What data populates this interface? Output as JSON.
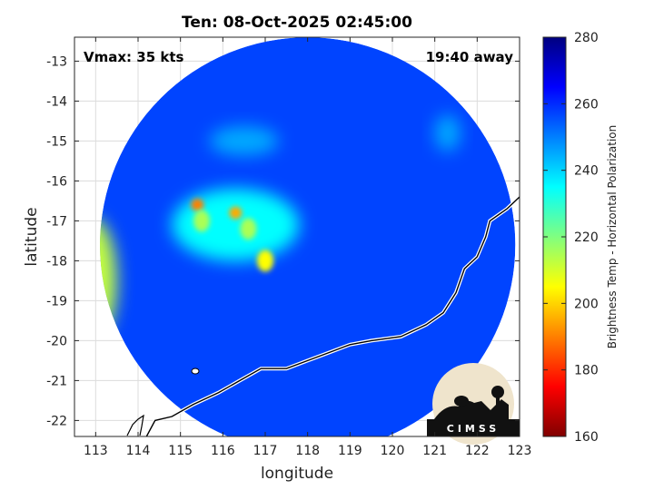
{
  "title": "Ten: 08-Oct-2025 02:45:00",
  "annotations": {
    "vmax": "Vmax: 35 kts",
    "away": "19:40 away"
  },
  "logo": {
    "text": "CIMSS"
  },
  "colors": {
    "accent_dark_blue": "#0a1a7a",
    "coastline": "#000000",
    "background": "#ffffff"
  },
  "chart_data": {
    "type": "heatmap",
    "title": "Ten: 08-Oct-2025 02:45:00",
    "xlabel": "longitude",
    "ylabel": "latitude",
    "xlim": [
      112.5,
      123
    ],
    "ylim": [
      -22.4,
      -12.4
    ],
    "x_ticks": [
      "113",
      "114",
      "115",
      "116",
      "117",
      "118",
      "119",
      "120",
      "121",
      "122",
      "123"
    ],
    "y_ticks": [
      "-13",
      "-14",
      "-15",
      "-16",
      "-17",
      "-18",
      "-19",
      "-20",
      "-21",
      "-22"
    ],
    "grid": true,
    "colorbar": {
      "label": "Brightness Temp - Horizontal Polarization",
      "range": [
        160,
        280
      ],
      "ticks": [
        "280",
        "260",
        "240",
        "220",
        "200",
        "180",
        "160"
      ]
    },
    "swath": {
      "center_lon": 118.0,
      "center_lat": -17.6,
      "radius_deg": 4.9
    },
    "features": [
      {
        "name": "cold band core",
        "lon": 116.3,
        "lat": -17.1,
        "value": 235
      },
      {
        "name": "upper cloud band",
        "lon": 116.5,
        "lat": -15.0,
        "value": 245
      },
      {
        "name": "northeast cloud",
        "lon": 121.3,
        "lat": -14.8,
        "value": 245
      },
      {
        "name": "west edge warm strip",
        "lon": 112.9,
        "lat": -18.5,
        "value": 212
      },
      {
        "name": "deep convection",
        "lon": 115.4,
        "lat": -16.6,
        "value": 190
      },
      {
        "name": "deep convection",
        "lon": 116.3,
        "lat": -16.8,
        "value": 195
      },
      {
        "name": "convection",
        "lon": 116.6,
        "lat": -17.2,
        "value": 215
      },
      {
        "name": "convection",
        "lon": 115.5,
        "lat": -17.0,
        "value": 215
      },
      {
        "name": "convection",
        "lon": 117.0,
        "lat": -18.0,
        "value": 205
      }
    ],
    "coastline": [
      [
        114.2,
        -22.4
      ],
      [
        114.4,
        -22.0
      ],
      [
        114.8,
        -21.9
      ],
      [
        115.3,
        -21.6
      ],
      [
        115.9,
        -21.3
      ],
      [
        116.4,
        -21.0
      ],
      [
        116.9,
        -20.7
      ],
      [
        117.5,
        -20.7
      ],
      [
        118.0,
        -20.5
      ],
      [
        118.5,
        -20.3
      ],
      [
        119.0,
        -20.1
      ],
      [
        119.5,
        -20.0
      ],
      [
        120.2,
        -19.9
      ],
      [
        120.8,
        -19.6
      ],
      [
        121.2,
        -19.3
      ],
      [
        121.5,
        -18.8
      ],
      [
        121.7,
        -18.2
      ],
      [
        122.0,
        -17.9
      ],
      [
        122.2,
        -17.4
      ],
      [
        122.3,
        -17.0
      ],
      [
        122.7,
        -16.7
      ],
      [
        123.0,
        -16.4
      ]
    ]
  }
}
